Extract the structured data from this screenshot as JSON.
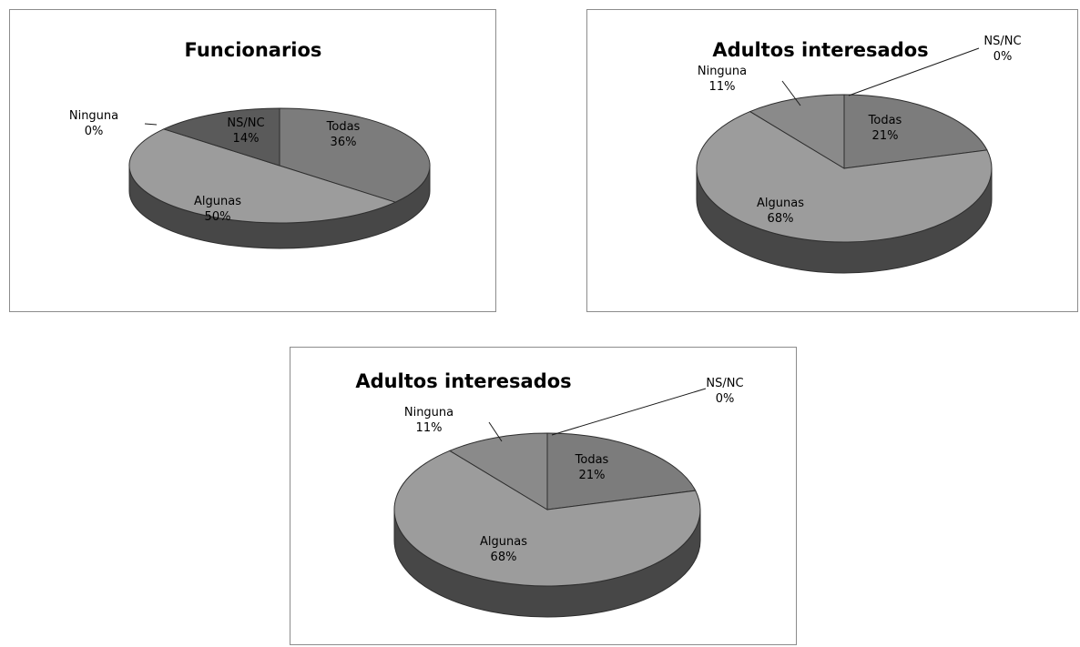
{
  "chart_data": [
    {
      "type": "pie",
      "title": "Funcionarios",
      "slices": [
        {
          "label": "Todas",
          "value": 36,
          "value_label": "36%"
        },
        {
          "label": "Algunas",
          "value": 50,
          "value_label": "50%"
        },
        {
          "label": "Ninguna",
          "value": 0,
          "value_label": "0%"
        },
        {
          "label": "NS/NC",
          "value": 14,
          "value_label": "14%"
        }
      ],
      "style": "3d"
    },
    {
      "type": "pie",
      "title": "Adultos interesados",
      "slices": [
        {
          "label": "Todas",
          "value": 21,
          "value_label": "21%"
        },
        {
          "label": "Algunas",
          "value": 68,
          "value_label": "68%"
        },
        {
          "label": "Ninguna",
          "value": 11,
          "value_label": "11%"
        },
        {
          "label": "NS/NC",
          "value": 0,
          "value_label": "0%"
        }
      ],
      "style": "3d"
    },
    {
      "type": "pie",
      "title": "Adultos interesados",
      "slices": [
        {
          "label": "Todas",
          "value": 21,
          "value_label": "21%"
        },
        {
          "label": "Algunas",
          "value": 68,
          "value_label": "68%"
        },
        {
          "label": "Ninguna",
          "value": 11,
          "value_label": "11%"
        },
        {
          "label": "NS/NC",
          "value": 0,
          "value_label": "0%"
        }
      ],
      "style": "3d"
    }
  ],
  "colors": {
    "Todas": "#7c7c7c",
    "Algunas": "#9c9c9c",
    "Ninguna": "#8a8a8a",
    "NS/NC": "#5a5a5a",
    "side": "#474747"
  }
}
